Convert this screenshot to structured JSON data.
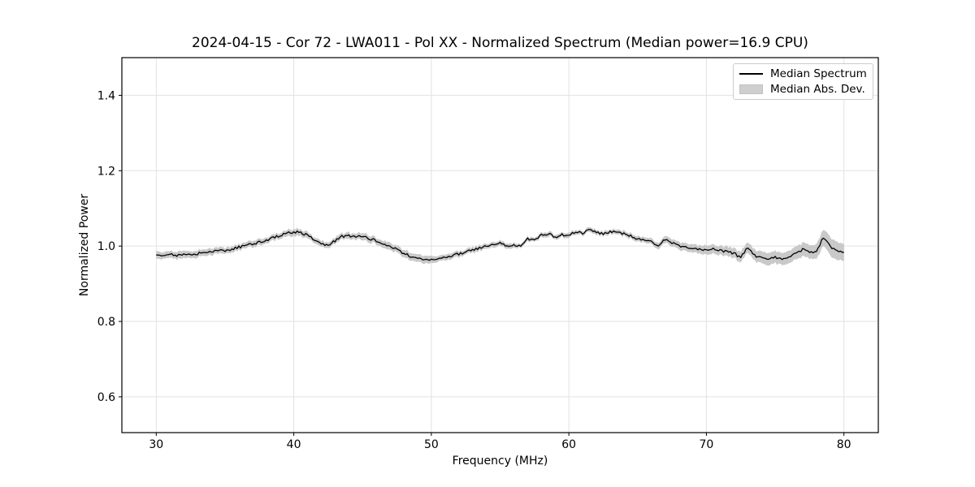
{
  "chart_data": {
    "type": "line",
    "title": "2024-04-15 - Cor 72 - LWA011 - Pol XX - Normalized Spectrum (Median power=16.9 CPU)",
    "xlabel": "Frequency (MHz)",
    "ylabel": "Normalized Power",
    "xlim": [
      27.5,
      82.5
    ],
    "ylim": [
      0.505,
      1.5
    ],
    "xticks": [
      30,
      40,
      50,
      60,
      70,
      80
    ],
    "xtick_labels": [
      "30",
      "40",
      "50",
      "60",
      "70",
      "80"
    ],
    "yticks": [
      0.6,
      0.8,
      1.0,
      1.2,
      1.4
    ],
    "ytick_labels": [
      "0.6",
      "0.8",
      "1.0",
      "1.2",
      "1.4"
    ],
    "grid": true,
    "legend": {
      "position": "upper right",
      "entries": [
        {
          "label": "Median Spectrum",
          "type": "line",
          "color": "#000000"
        },
        {
          "label": "Median Abs. Dev.",
          "type": "patch",
          "color": "#cfcfcf"
        }
      ]
    },
    "series": [
      {
        "name": "Median Spectrum",
        "x_start": 30.0,
        "x_step": 0.5,
        "median": [
          0.978,
          0.976,
          0.977,
          0.976,
          0.978,
          0.978,
          0.98,
          0.983,
          0.986,
          0.988,
          0.987,
          0.993,
          0.997,
          1.001,
          1.006,
          1.011,
          1.016,
          1.022,
          1.028,
          1.034,
          1.038,
          1.036,
          1.029,
          1.017,
          1.006,
          1.003,
          1.014,
          1.026,
          1.028,
          1.024,
          1.027,
          1.02,
          1.014,
          1.007,
          0.999,
          0.99,
          0.981,
          0.972,
          0.966,
          0.963,
          0.962,
          0.966,
          0.97,
          0.974,
          0.979,
          0.984,
          0.989,
          0.995,
          1.0,
          1.003,
          1.007,
          1.001,
          1.004,
          0.999,
          1.02,
          1.015,
          1.028,
          1.033,
          1.024,
          1.03,
          1.029,
          1.037,
          1.034,
          1.043,
          1.037,
          1.033,
          1.039,
          1.037,
          1.033,
          1.026,
          1.019,
          1.015,
          1.01,
          0.998,
          1.018,
          1.008,
          1.002,
          0.996,
          0.992,
          0.993,
          0.988,
          0.994,
          0.99,
          0.984,
          0.981,
          0.968,
          0.998,
          0.975,
          0.97,
          0.963,
          0.97,
          0.966,
          0.972,
          0.979,
          0.991,
          0.983,
          0.987,
          1.022,
          0.999,
          0.989,
          0.981
        ],
        "mad": [
          0.01,
          0.009,
          0.009,
          0.009,
          0.009,
          0.009,
          0.009,
          0.009,
          0.009,
          0.009,
          0.008,
          0.008,
          0.008,
          0.008,
          0.008,
          0.008,
          0.008,
          0.008,
          0.008,
          0.008,
          0.009,
          0.009,
          0.008,
          0.008,
          0.008,
          0.008,
          0.008,
          0.008,
          0.008,
          0.008,
          0.009,
          0.009,
          0.009,
          0.009,
          0.009,
          0.01,
          0.01,
          0.01,
          0.01,
          0.01,
          0.01,
          0.008,
          0.008,
          0.008,
          0.008,
          0.007,
          0.007,
          0.007,
          0.007,
          0.007,
          0.007,
          0.007,
          0.006,
          0.006,
          0.006,
          0.006,
          0.006,
          0.006,
          0.006,
          0.006,
          0.006,
          0.006,
          0.006,
          0.006,
          0.006,
          0.006,
          0.006,
          0.006,
          0.007,
          0.007,
          0.007,
          0.007,
          0.008,
          0.008,
          0.009,
          0.01,
          0.01,
          0.011,
          0.011,
          0.011,
          0.012,
          0.012,
          0.012,
          0.013,
          0.013,
          0.014,
          0.014,
          0.015,
          0.015,
          0.016,
          0.016,
          0.016,
          0.017,
          0.017,
          0.018,
          0.018,
          0.019,
          0.022,
          0.024,
          0.024,
          0.022
        ]
      }
    ],
    "style": {
      "line_color": "#000000",
      "band_color": "#c9c9c9",
      "grid_color": "#e2e2e2",
      "frame_color": "#000000",
      "tick_color": "#000000",
      "noise_amplitude": 0.0035
    }
  }
}
